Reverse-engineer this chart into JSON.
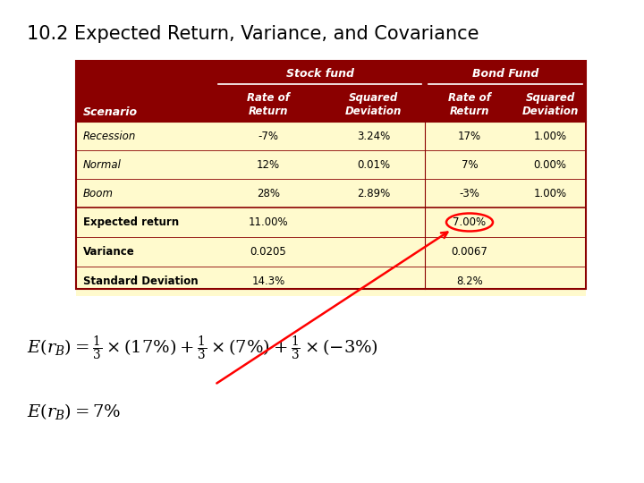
{
  "title": "10.2 Expected Return, Variance, and Covariance",
  "header_bg": "#8B0000",
  "row_bg": "#FFFACD",
  "border_color": "#8B0000",
  "col_subheaders": [
    "Scenario",
    "Rate of\nReturn",
    "Squared\nDeviation",
    "Rate of\nReturn",
    "Squared\nDeviation"
  ],
  "data_rows": [
    [
      "Recession",
      "-7%",
      "3.24%",
      "17%",
      "1.00%"
    ],
    [
      "Normal",
      "12%",
      "0.01%",
      "7%",
      "0.00%"
    ],
    [
      "Boom",
      "28%",
      "2.89%",
      "-3%",
      "1.00%"
    ],
    [
      "Expected return",
      "11.00%",
      "",
      "7.00%",
      ""
    ],
    [
      "Variance",
      "0.0205",
      "",
      "0.0067",
      ""
    ],
    [
      "Standard Deviation",
      "14.3%",
      "",
      "8.2%",
      ""
    ]
  ],
  "row_styles": [
    "data",
    "data",
    "data",
    "summary",
    "summary",
    "summary"
  ]
}
